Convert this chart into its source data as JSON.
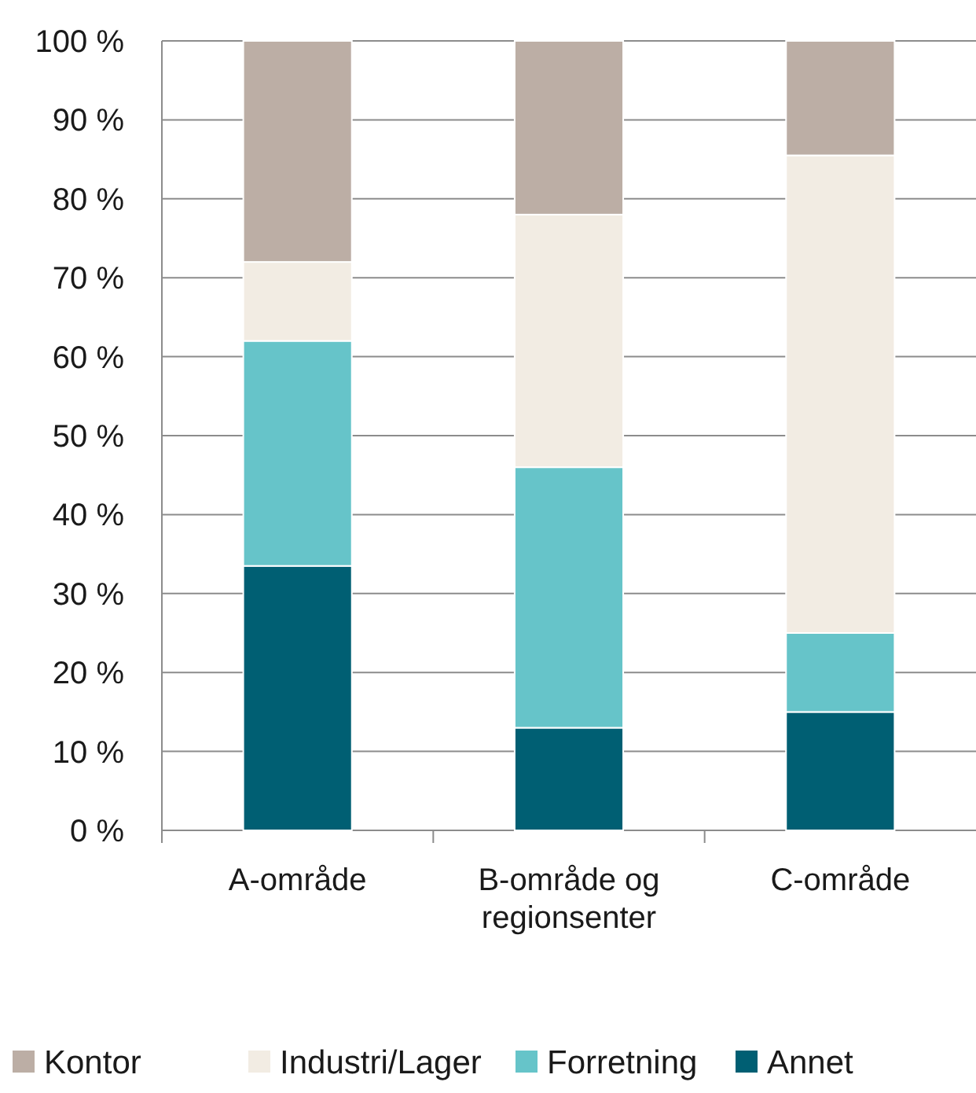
{
  "chart_data": {
    "type": "bar",
    "stacked": true,
    "categories": [
      "A-område",
      "B-område og regionsenter",
      "C-område"
    ],
    "series": [
      {
        "name": "Annet",
        "color": "#005f73",
        "values": [
          33.5,
          13,
          15
        ]
      },
      {
        "name": "Forretning",
        "color": "#66c4c9",
        "values": [
          28.5,
          33,
          10
        ]
      },
      {
        "name": "Industri/Lager",
        "color": "#f2ece3",
        "values": [
          10,
          32,
          60.5
        ]
      },
      {
        "name": "Kontor",
        "color": "#bcaea5",
        "values": [
          28,
          22,
          14.5
        ]
      }
    ],
    "ylim": [
      0,
      100
    ],
    "yticks": [
      {
        "value": 0,
        "label": "0 %"
      },
      {
        "value": 10,
        "label": "10 %"
      },
      {
        "value": 20,
        "label": "20 %"
      },
      {
        "value": 30,
        "label": "30 %"
      },
      {
        "value": 40,
        "label": "40 %"
      },
      {
        "value": 50,
        "label": "50 %"
      },
      {
        "value": 60,
        "label": "60 %"
      },
      {
        "value": 70,
        "label": "70 %"
      },
      {
        "value": 80,
        "label": "80 %"
      },
      {
        "value": 90,
        "label": "90 %"
      },
      {
        "value": 100,
        "label": "100 %"
      }
    ],
    "grid": "y",
    "legend": "bottom"
  }
}
